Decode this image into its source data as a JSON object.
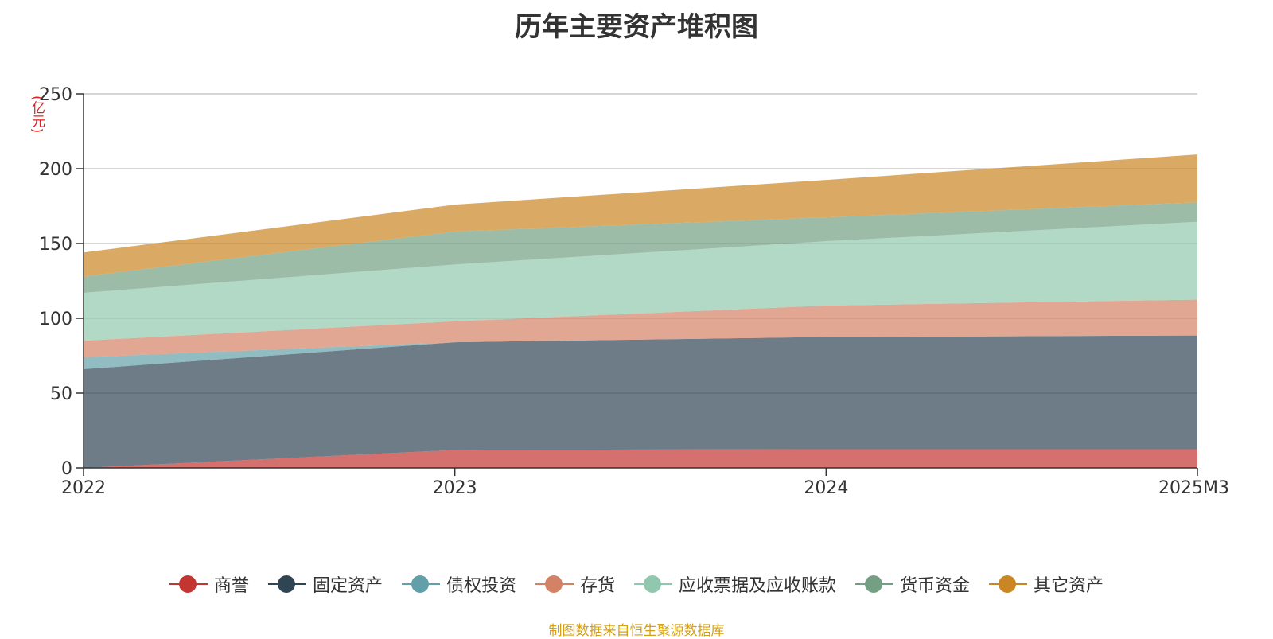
{
  "chart_data": {
    "type": "area",
    "stacked": true,
    "title": "历年主要资产堆积图",
    "unit_label": "(亿元)",
    "categories": [
      "2022",
      "2023",
      "2024",
      "2025M3"
    ],
    "ylim": [
      0,
      250
    ],
    "yticks": [
      0,
      50,
      100,
      150,
      200,
      250
    ],
    "grid": true,
    "legend_position": "bottom",
    "series": [
      {
        "name": "商誉",
        "color": "#c23531",
        "values": [
          0,
          12,
          12.5,
          12.5
        ]
      },
      {
        "name": "固定资产",
        "color": "#2f4554",
        "values": [
          66,
          72,
          75,
          76
        ]
      },
      {
        "name": "债权投资",
        "color": "#61a0a8",
        "values": [
          8,
          0,
          0,
          0
        ]
      },
      {
        "name": "存货",
        "color": "#d48265",
        "values": [
          11,
          14,
          21,
          24
        ]
      },
      {
        "name": "应收票据及应收账款",
        "color": "#91c7ae",
        "values": [
          32,
          38,
          43,
          52
        ]
      },
      {
        "name": "货币资金",
        "color": "#749f83",
        "values": [
          11,
          22,
          16,
          13
        ]
      },
      {
        "name": "其它资产",
        "color": "#ca8622",
        "values": [
          16,
          18,
          25,
          32
        ]
      }
    ]
  },
  "source_text": "制图数据来自恒生聚源数据库"
}
